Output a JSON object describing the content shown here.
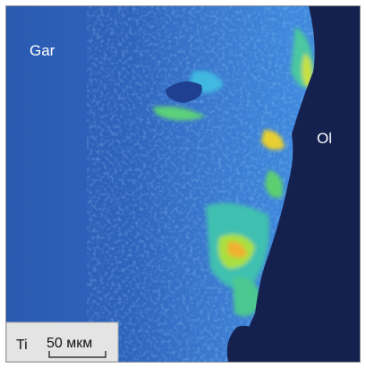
{
  "labels": {
    "garnet": "Gar",
    "olivine": "Ol"
  },
  "legend": {
    "element": "Ti",
    "scale": "50 мкм"
  }
}
